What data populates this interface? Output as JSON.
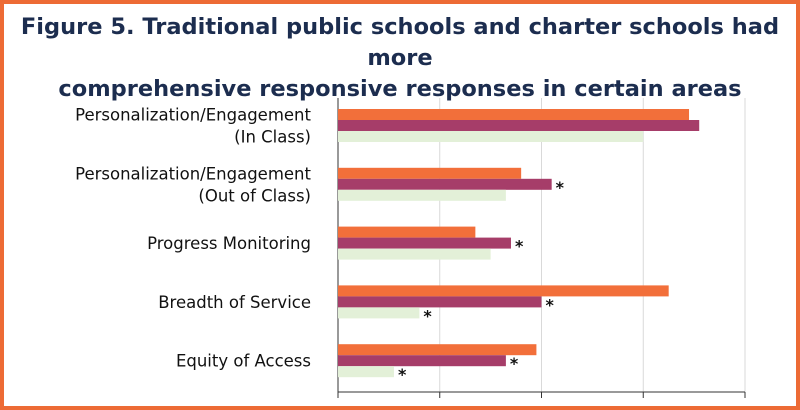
{
  "figure": {
    "title_line1": "Figure 5. Traditional public schools and charter schools had more",
    "title_line2": "comprehensive responsive responses in certain areas"
  },
  "colors": {
    "frame": "#ed6b35",
    "title": "#1c2d4f",
    "series": [
      "#f26f3a",
      "#a63d69",
      "#e3f0d8"
    ],
    "grid": "#d9d9d9",
    "axis": "#333333"
  },
  "chart_data": {
    "type": "bar",
    "orientation": "horizontal",
    "categories": [
      [
        "Personalization/Engagement",
        "(In Class)"
      ],
      [
        "Personalization/Engagement",
        "(Out of Class)"
      ],
      [
        "Progress Monitoring"
      ],
      [
        "Breadth of Service"
      ],
      [
        "Equity of Access"
      ]
    ],
    "series": [
      {
        "values": [
          69,
          36,
          27,
          65,
          39
        ]
      },
      {
        "values": [
          71,
          42,
          34,
          40,
          33
        ]
      },
      {
        "values": [
          60,
          33,
          30,
          16,
          11
        ]
      }
    ],
    "significance": [
      [
        "",
        "",
        ""
      ],
      [
        "",
        "*",
        ""
      ],
      [
        "",
        "*",
        ""
      ],
      [
        "",
        "*",
        "*"
      ],
      [
        "",
        "*",
        "*"
      ]
    ],
    "xlim": [
      0,
      80
    ],
    "grid": true,
    "legend": "none"
  }
}
